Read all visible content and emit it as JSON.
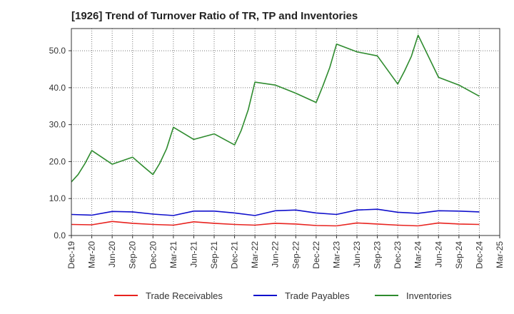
{
  "chart_data": {
    "type": "line",
    "title": "[1926]  Trend of Turnover Ratio of TR, TP and Inventories",
    "xlabel": "",
    "ylabel": "",
    "ylim": [
      0,
      56
    ],
    "y_ticks": [
      "0.0",
      "10.0",
      "20.0",
      "30.0",
      "40.0",
      "50.0"
    ],
    "y_tick_values": [
      0,
      10,
      20,
      30,
      40,
      50
    ],
    "x_tick_labels": [
      "Dec-19",
      "Mar-20",
      "Jun-20",
      "Sep-20",
      "Dec-20",
      "Mar-21",
      "Jun-21",
      "Sep-21",
      "Dec-21",
      "Mar-22",
      "Jun-22",
      "Sep-22",
      "Dec-22",
      "Mar-23",
      "Jun-23",
      "Sep-23",
      "Dec-23",
      "Mar-24",
      "Jun-24",
      "Sep-24",
      "Dec-24",
      "Mar-25"
    ],
    "grid": true,
    "legend_position": "bottom",
    "series": [
      {
        "name": "Trade Receivables",
        "color": "#e8231f",
        "points": [
          [
            0,
            3.0
          ],
          [
            1,
            2.9
          ],
          [
            2,
            3.8
          ],
          [
            3,
            3.3
          ],
          [
            4,
            3.0
          ],
          [
            5,
            2.8
          ],
          [
            6,
            3.7
          ],
          [
            7,
            3.3
          ],
          [
            8,
            3.0
          ],
          [
            9,
            2.8
          ],
          [
            10,
            3.3
          ],
          [
            11,
            3.1
          ],
          [
            12,
            2.7
          ],
          [
            13,
            2.6
          ],
          [
            14,
            3.4
          ],
          [
            15,
            3.1
          ],
          [
            16,
            2.8
          ],
          [
            17,
            2.6
          ],
          [
            18,
            3.4
          ],
          [
            19,
            3.1
          ],
          [
            20,
            3.0
          ]
        ]
      },
      {
        "name": "Trade Payables",
        "color": "#1010cc",
        "points": [
          [
            0,
            5.7
          ],
          [
            1,
            5.5
          ],
          [
            2,
            6.5
          ],
          [
            3,
            6.4
          ],
          [
            4,
            5.8
          ],
          [
            5,
            5.4
          ],
          [
            6,
            6.6
          ],
          [
            7,
            6.6
          ],
          [
            8,
            6.1
          ],
          [
            9,
            5.4
          ],
          [
            10,
            6.7
          ],
          [
            11,
            6.9
          ],
          [
            12,
            6.1
          ],
          [
            13,
            5.7
          ],
          [
            14,
            6.9
          ],
          [
            15,
            7.1
          ],
          [
            16,
            6.3
          ],
          [
            17,
            6.0
          ],
          [
            18,
            6.7
          ],
          [
            19,
            6.6
          ],
          [
            20,
            6.4
          ]
        ]
      },
      {
        "name": "Inventories",
        "color": "#2e8b2e",
        "points": [
          [
            0,
            14.5
          ],
          [
            0.33,
            16.5
          ],
          [
            0.67,
            19.5
          ],
          [
            1,
            23.0
          ],
          [
            2,
            19.3
          ],
          [
            3,
            21.2
          ],
          [
            3.5,
            18.8
          ],
          [
            4,
            16.5
          ],
          [
            4.33,
            19.5
          ],
          [
            4.67,
            23.5
          ],
          [
            5,
            29.3
          ],
          [
            6,
            26.0
          ],
          [
            7,
            27.5
          ],
          [
            8,
            24.5
          ],
          [
            8.33,
            28.5
          ],
          [
            8.67,
            34.0
          ],
          [
            9,
            41.5
          ],
          [
            10,
            40.7
          ],
          [
            11,
            38.5
          ],
          [
            12,
            36.0
          ],
          [
            12.33,
            40.5
          ],
          [
            12.67,
            45.5
          ],
          [
            13,
            51.8
          ],
          [
            14,
            49.7
          ],
          [
            15,
            48.6
          ],
          [
            16,
            41.0
          ],
          [
            16.33,
            44.5
          ],
          [
            16.67,
            48.5
          ],
          [
            17,
            54.2
          ],
          [
            18,
            42.8
          ],
          [
            19,
            40.7
          ],
          [
            20,
            37.7
          ]
        ]
      }
    ]
  }
}
